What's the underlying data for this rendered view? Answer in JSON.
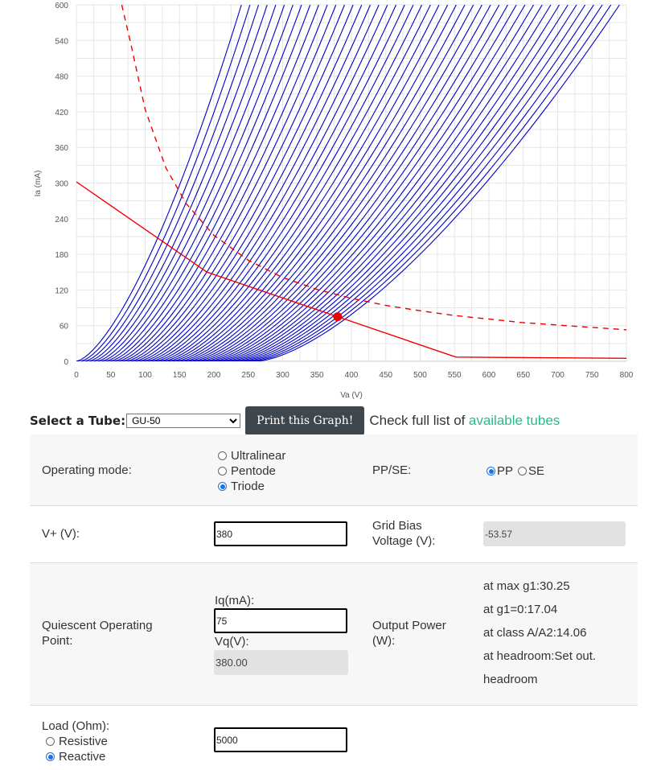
{
  "chart_data": {
    "type": "line",
    "title": "",
    "xlabel": "Va (V)",
    "ylabel": "Ia (mA)",
    "xlim": [
      0,
      800
    ],
    "ylim": [
      0,
      600
    ],
    "xticks": [
      0,
      50,
      100,
      150,
      200,
      250,
      300,
      350,
      400,
      450,
      500,
      550,
      600,
      650,
      700,
      750,
      800
    ],
    "yticks": [
      0,
      60,
      120,
      180,
      240,
      300,
      360,
      420,
      480,
      540,
      600
    ],
    "grid": true,
    "colors": {
      "curves": "#0000cc",
      "load_line": "#ee0000",
      "power_limit": "#ee0000",
      "grid": "#e6e6e6"
    },
    "plate_curves": {
      "description_series": "family of triode plate curves, one per grid voltage step",
      "grid_steps": 45,
      "voltage_at_600mA_for_step0": 240,
      "voltage_step_per_curve": 12.5,
      "exponent": 1.5
    },
    "series": [
      {
        "role": "load-line",
        "style": "solid",
        "points": [
          [
            0,
            302
          ],
          [
            190,
            150
          ],
          [
            380,
            75
          ],
          [
            552,
            7
          ],
          [
            800,
            5
          ]
        ]
      },
      {
        "role": "max-dissipation",
        "style": "dashed",
        "points": [
          [
            66,
            600
          ],
          [
            80,
            530
          ],
          [
            100,
            424
          ],
          [
            130,
            326
          ],
          [
            160,
            265
          ],
          [
            200,
            212
          ],
          [
            250,
            170
          ],
          [
            300,
            141
          ],
          [
            350,
            121
          ],
          [
            400,
            106
          ],
          [
            450,
            94
          ],
          [
            500,
            85
          ],
          [
            550,
            77
          ],
          [
            600,
            71
          ],
          [
            650,
            65
          ],
          [
            700,
            61
          ],
          [
            750,
            57
          ],
          [
            800,
            53
          ]
        ]
      }
    ],
    "operating_point": {
      "x": 380,
      "y": 75
    }
  },
  "selector": {
    "label": "Select a Tube:",
    "tube": "GU-50",
    "print_label": "Print this Graph!",
    "list_text": "Check full list of",
    "list_link": "available tubes"
  },
  "form": {
    "mode_label": "Operating mode:",
    "mode_options": [
      {
        "label": "Ultralinear",
        "checked": false
      },
      {
        "label": "Pentode",
        "checked": false
      },
      {
        "label": "Triode",
        "checked": true
      }
    ],
    "ppse_label": "PP/SE:",
    "ppse_options": [
      {
        "label": "PP",
        "checked": true
      },
      {
        "label": "SE",
        "checked": false
      }
    ],
    "vplus_label": "V+ (V):",
    "vplus_value": "380",
    "bias_label_1": "Grid Bias",
    "bias_label_2": "Voltage (V):",
    "bias_value": "-53.57",
    "qop_label_1": "Quiescent Operating",
    "qop_label_2": "Point:",
    "iq_label": "Iq(mA):",
    "iq_value": "75",
    "vq_label": "Vq(V):",
    "vq_value": "380.00",
    "power_label_1": "Output Power",
    "power_label_2": "(W):",
    "power_lines": [
      "at max g1:30.25",
      "at g1=0:17.04",
      "at class A/A2:14.06",
      "at headroom:Set out.",
      "headroom"
    ],
    "load_label": "Load (Ohm):",
    "load_options": [
      {
        "label": "Resistive",
        "checked": false
      },
      {
        "label": "Reactive",
        "checked": true
      }
    ],
    "load_value": "5000"
  }
}
